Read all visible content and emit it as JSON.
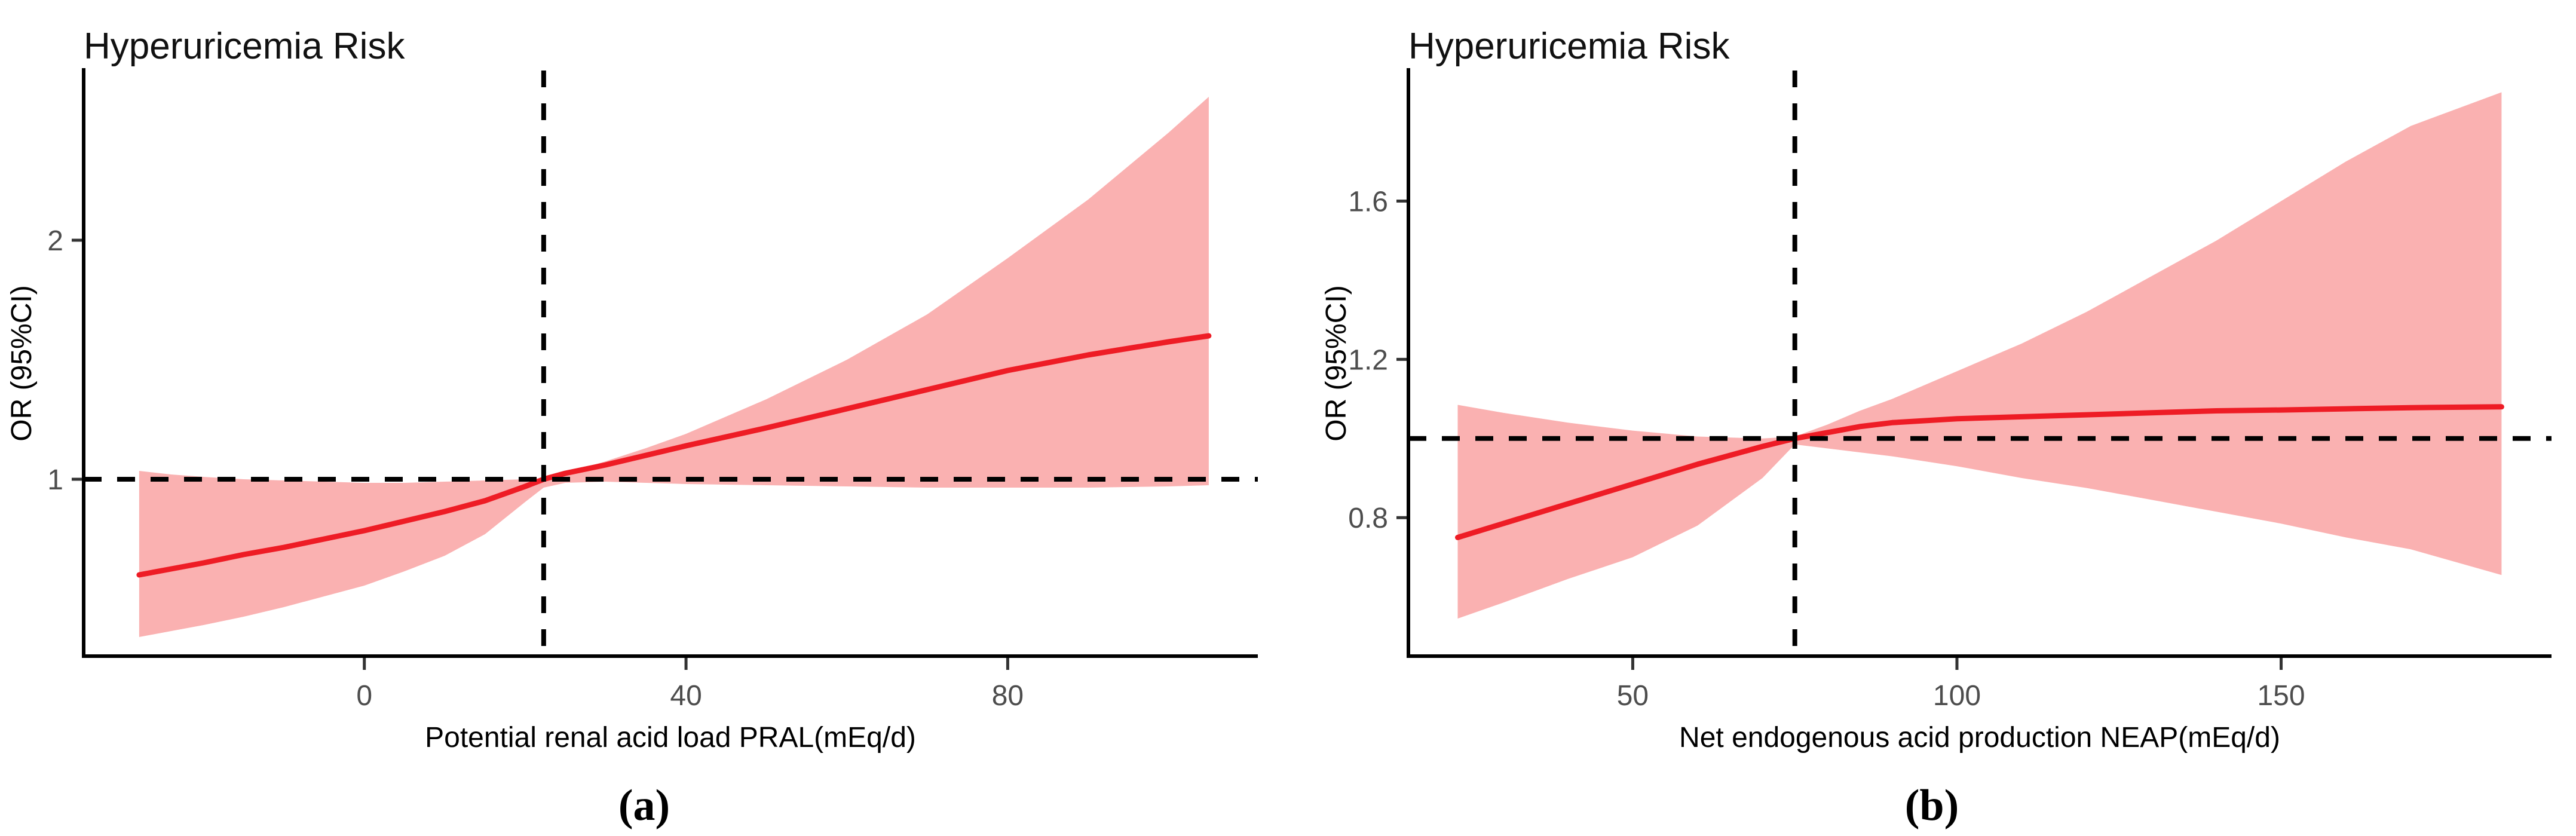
{
  "page": {
    "background": "#ffffff"
  },
  "figure": {
    "captions": [
      {
        "label": "(a)"
      },
      {
        "label": "(b)"
      }
    ]
  },
  "chart_data": [
    {
      "type": "area",
      "title": "Hyperuricemia Risk",
      "xlabel": "Potential renal acid load PRAL(mEq/d)",
      "ylabel": "OR (95%CI)",
      "xlim": [
        -34.9,
        111.1
      ],
      "ylim": [
        0.26,
        2.71
      ],
      "xticks": [
        0,
        40,
        80
      ],
      "yticks": [
        1,
        2
      ],
      "refline_y": 1.0,
      "refline_x": 22.3,
      "legend": "none",
      "grid": "off",
      "series_name": "OR with 95% CI",
      "x": [
        -28,
        -24,
        -20,
        -15,
        -10,
        -5,
        0,
        5,
        10,
        15,
        20,
        22.3,
        25,
        30,
        35,
        40,
        50,
        60,
        70,
        80,
        90,
        100,
        105
      ],
      "line": [
        0.6,
        0.625,
        0.65,
        0.685,
        0.715,
        0.75,
        0.785,
        0.825,
        0.865,
        0.91,
        0.97,
        1.0,
        1.025,
        1.06,
        1.1,
        1.14,
        1.215,
        1.295,
        1.375,
        1.455,
        1.52,
        1.575,
        1.6
      ],
      "lower": [
        0.34,
        0.365,
        0.39,
        0.425,
        0.465,
        0.51,
        0.555,
        0.615,
        0.68,
        0.77,
        0.905,
        0.965,
        0.985,
        0.99,
        0.985,
        0.98,
        0.975,
        0.97,
        0.965,
        0.965,
        0.965,
        0.97,
        0.975
      ],
      "upper": [
        1.035,
        1.02,
        1.01,
        1.0,
        0.995,
        0.99,
        0.985,
        0.985,
        0.99,
        0.995,
        1.0,
        1.005,
        1.025,
        1.075,
        1.13,
        1.19,
        1.335,
        1.5,
        1.69,
        1.925,
        2.17,
        2.45,
        2.6
      ],
      "colors": {
        "line": "#EE1C25",
        "ribbon": "#FAB1B1",
        "refline": "#000000",
        "axis": "#000000",
        "tick": "#333333",
        "tick_text": "#4d4d4d"
      }
    },
    {
      "type": "area",
      "title": "Hyperuricemia Risk",
      "xlabel": "Net endogenous acid production NEAP(mEq/d)",
      "ylabel": "OR (95%CI)",
      "xlim": [
        15.4,
        191.7
      ],
      "ylim": [
        0.45,
        1.93
      ],
      "xticks": [
        50,
        100,
        150
      ],
      "yticks": [
        0.8,
        1.2,
        1.6
      ],
      "refline_y": 1.0,
      "refline_x": 75,
      "legend": "none",
      "grid": "off",
      "series_name": "OR with 95% CI",
      "x": [
        23,
        30,
        40,
        50,
        60,
        70,
        75,
        80,
        85,
        90,
        100,
        110,
        120,
        130,
        140,
        150,
        160,
        170,
        184
      ],
      "line": [
        0.75,
        0.785,
        0.835,
        0.885,
        0.935,
        0.98,
        1.0,
        1.015,
        1.03,
        1.04,
        1.05,
        1.055,
        1.06,
        1.065,
        1.07,
        1.072,
        1.075,
        1.078,
        1.08
      ],
      "lower": [
        0.545,
        0.585,
        0.645,
        0.7,
        0.78,
        0.9,
        0.985,
        0.975,
        0.965,
        0.955,
        0.93,
        0.9,
        0.875,
        0.845,
        0.815,
        0.785,
        0.75,
        0.72,
        0.655
      ],
      "upper": [
        1.085,
        1.065,
        1.04,
        1.02,
        1.005,
        1.0,
        1.005,
        1.035,
        1.07,
        1.1,
        1.17,
        1.24,
        1.32,
        1.41,
        1.5,
        1.6,
        1.7,
        1.79,
        1.875
      ],
      "colors": {
        "line": "#EE1C25",
        "ribbon": "#FAB1B1",
        "refline": "#000000",
        "axis": "#000000",
        "tick": "#333333",
        "tick_text": "#4d4d4d"
      }
    }
  ]
}
